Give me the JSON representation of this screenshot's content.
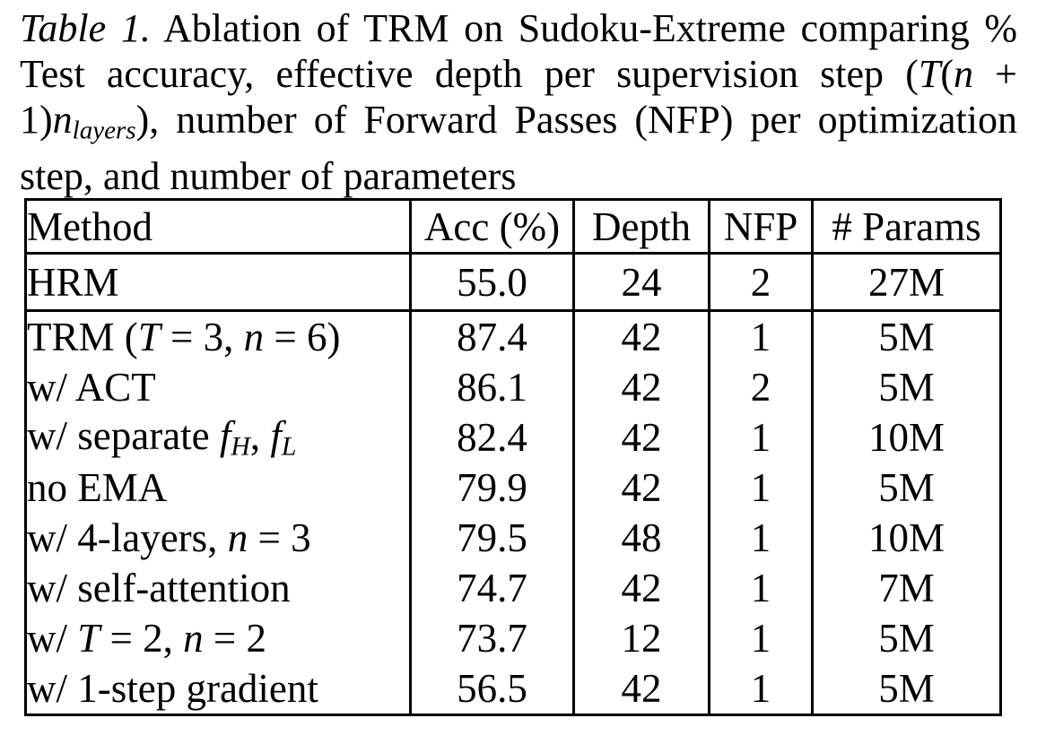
{
  "page": {
    "background": "#ffffff",
    "text_color": "#000000",
    "border_color": "#000000"
  },
  "caption": {
    "lines": [
      {
        "segments": [
          {
            "t": "Table 1.",
            "s": "i"
          },
          {
            "t": " Ablation of TRM on Sudoku-Extreme comparing %",
            "s": "n"
          }
        ]
      },
      {
        "segments": [
          {
            "t": "Test accuracy, effective depth per supervision step (",
            "s": "n"
          },
          {
            "t": "T",
            "s": "i"
          },
          {
            "t": "(",
            "s": "n"
          },
          {
            "t": "n",
            "s": "i"
          },
          {
            "t": " +",
            "s": "n"
          }
        ]
      },
      {
        "segments": [
          {
            "t": "1)",
            "s": "n"
          },
          {
            "t": "n",
            "s": "i"
          },
          {
            "t": "layers",
            "s": "sub"
          },
          {
            "t": "), number of Forward Passes (NFP) per optimization",
            "s": "n"
          }
        ]
      },
      {
        "segments": [
          {
            "t": "step, and number of parameters",
            "s": "n"
          }
        ]
      }
    ]
  },
  "table": {
    "headers": [
      "Method",
      "Acc (%)",
      "Depth",
      "NFP",
      "# Params"
    ],
    "rows": [
      {
        "method": [
          {
            "t": "HRM",
            "s": "n"
          }
        ],
        "acc": "55.0",
        "depth": "24",
        "nfp": "2",
        "params": "27M",
        "group": "baseline"
      },
      {
        "method": [
          {
            "t": "TRM (",
            "s": "n"
          },
          {
            "t": "T",
            "s": "i"
          },
          {
            "t": " = 3, ",
            "s": "n"
          },
          {
            "t": "n",
            "s": "i"
          },
          {
            "t": " = 6)",
            "s": "n"
          }
        ],
        "acc": "87.4",
        "depth": "42",
        "nfp": "1",
        "params": "5M",
        "group": "trm"
      },
      {
        "method": [
          {
            "t": "w/ ACT",
            "s": "n"
          }
        ],
        "acc": "86.1",
        "depth": "42",
        "nfp": "2",
        "params": "5M",
        "group": "trm"
      },
      {
        "method": [
          {
            "t": "w/ separate ",
            "s": "n"
          },
          {
            "t": "f",
            "s": "i"
          },
          {
            "t": "H",
            "s": "sub"
          },
          {
            "t": ", ",
            "s": "n"
          },
          {
            "t": "f",
            "s": "i"
          },
          {
            "t": "L",
            "s": "sub"
          }
        ],
        "acc": "82.4",
        "depth": "42",
        "nfp": "1",
        "params": "10M",
        "group": "trm"
      },
      {
        "method": [
          {
            "t": "no EMA",
            "s": "n"
          }
        ],
        "acc": "79.9",
        "depth": "42",
        "nfp": "1",
        "params": "5M",
        "group": "trm"
      },
      {
        "method": [
          {
            "t": "w/ 4-layers, ",
            "s": "n"
          },
          {
            "t": "n",
            "s": "i"
          },
          {
            "t": " = 3",
            "s": "n"
          }
        ],
        "acc": "79.5",
        "depth": "48",
        "nfp": "1",
        "params": "10M",
        "group": "trm"
      },
      {
        "method": [
          {
            "t": "w/ self-attention",
            "s": "n"
          }
        ],
        "acc": "74.7",
        "depth": "42",
        "nfp": "1",
        "params": "7M",
        "group": "trm"
      },
      {
        "method": [
          {
            "t": "w/ ",
            "s": "n"
          },
          {
            "t": "T",
            "s": "i"
          },
          {
            "t": " = 2, ",
            "s": "n"
          },
          {
            "t": "n",
            "s": "i"
          },
          {
            "t": " = 2",
            "s": "n"
          }
        ],
        "acc": "73.7",
        "depth": "12",
        "nfp": "1",
        "params": "5M",
        "group": "trm"
      },
      {
        "method": [
          {
            "t": "w/ 1-step gradient",
            "s": "n"
          }
        ],
        "acc": "56.5",
        "depth": "42",
        "nfp": "1",
        "params": "5M",
        "group": "trm"
      }
    ]
  }
}
